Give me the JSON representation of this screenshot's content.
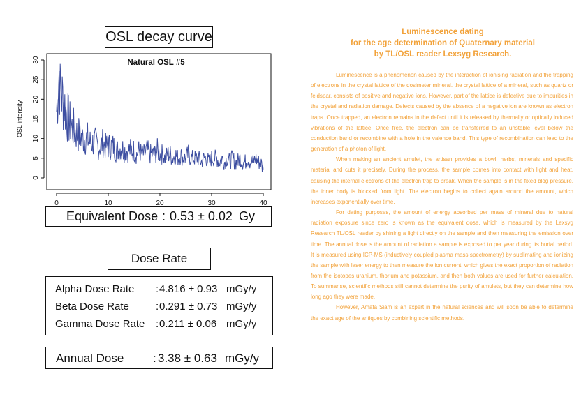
{
  "panel": {
    "title": "OSL decay curve",
    "equivalent_dose": {
      "label": "Equivalent Dose",
      "sep": ":",
      "value": "0.53 ± 0.02",
      "unit": "Gy"
    },
    "dose_rate_title": "Dose Rate",
    "rates": [
      {
        "label": "Alpha Dose Rate",
        "sep": ":",
        "value": "4.816 ± 0.93",
        "unit": "mGy/y"
      },
      {
        "label": "Beta Dose Rate",
        "sep": ":",
        "value": "0.291 ± 0.73",
        "unit": "mGy/y"
      },
      {
        "label": "Gamma Dose Rate",
        "sep": ":",
        "value": "0.211 ± 0.06",
        "unit": "mGy/y"
      }
    ],
    "annual_dose": {
      "label": "Annual Dose",
      "sep": ":",
      "value": "3.38 ± 0.63",
      "unit": "mGy/y"
    }
  },
  "chart_data": {
    "type": "line",
    "title": "Natural OSL #5",
    "xlabel": "",
    "ylabel": "OSL intensity",
    "xlim": [
      0,
      40
    ],
    "ylim": [
      0,
      30
    ],
    "x_ticks": [
      "0",
      "10",
      "20",
      "30",
      "40"
    ],
    "y_ticks": [
      "0",
      "5",
      "10",
      "15",
      "20",
      "25",
      "30"
    ],
    "grid": false,
    "line_color": "#3d4ea1",
    "series": [
      {
        "x": [
          0,
          0.5,
          1,
          1.5,
          2,
          2.5,
          3,
          3.5,
          4,
          4.5,
          5,
          5.5,
          6,
          6.5,
          7,
          7.5,
          8,
          8.5,
          9,
          9.5,
          10,
          10.5,
          11,
          11.5,
          12,
          12.5,
          13,
          13.5,
          14,
          14.5,
          15,
          15.5,
          16,
          16.5,
          17,
          17.5,
          18,
          18.5,
          19,
          19.5,
          20,
          20.5,
          21,
          21.5,
          22,
          22.5,
          23,
          23.5,
          24,
          24.5,
          25,
          25.5,
          26,
          26.5,
          27,
          27.5,
          28,
          28.5,
          29,
          29.5,
          30,
          30.5,
          31,
          31.5,
          32,
          32.5,
          33,
          33.5,
          34,
          34.5,
          35,
          35.5,
          36,
          36.5,
          37,
          37.5,
          38,
          38.5,
          39,
          39.5,
          40
        ],
        "y": [
          17,
          27,
          21,
          19,
          16,
          14,
          13,
          12,
          11,
          11,
          10,
          10,
          10,
          9,
          9,
          9,
          8,
          8,
          9,
          8,
          8,
          8,
          8,
          7,
          7,
          8,
          7,
          7,
          7,
          7,
          7,
          6,
          7,
          6,
          6,
          7,
          6,
          6,
          6,
          7,
          6,
          6,
          5,
          6,
          6,
          5,
          6,
          5,
          6,
          5,
          5,
          6,
          5,
          5,
          5,
          5,
          4,
          5,
          5,
          4,
          5,
          5,
          5,
          4,
          5,
          4,
          5,
          4,
          5,
          4,
          4,
          5,
          4,
          4,
          5,
          4,
          4,
          5,
          4,
          4,
          2
        ]
      }
    ]
  },
  "article": {
    "heading": [
      "Luminescence dating",
      "for the age determination of Quaternary material",
      "by TL/OSL reader Lexsyg Research."
    ],
    "paragraphs": [
      "Luminescence is a phenomenon caused by the interaction of ionising radiation and the trapping of electrons in the crystal lattice of the dosimeter mineral. the crystal lattice of a mineral, such as quartz or feldspar, consists of positive and negative ions. However, part of the lattice is defective due to impurities in the crystal and radiation damage. Defects caused by the absence of a negative ion are known as electron traps. Once trapped, an electron remains in the defect until it is released by thermally or optically induced vibrations of the lattice. Once free, the electron can be transferred to an unstable level below the conduction band or recombine with a hole in the valence band. This type of recombination can lead to the generation of a photon of light.",
      "When making an ancient amulet, the artisan provides a bowl, herbs, minerals and specific material and cuts it precisely. During the process, the sample comes into contact with light and heat, causing the internal electrons of the electron trap to break. When the sample is in the fixed blog pressure, the inner body is blocked from light. The electron begins to collect again around the amount, which increases exponentially over time.",
      "For dating purposes, the amount of energy absorbed per mass of mineral due to natural radiation exposure since zero is known as the equivalent dose, which is measured by the Lexsyg Research TL/OSL reader by shining a light directly on the sample and then measuring the emission over time. The annual dose is the amount of radiation a sample is exposed to per year during its burial period. It is measured using ICP-MS (inductively coupled plasma mass spectrometry) by sublimating and ionizing the sample with laser energy to then measure the ion current, which gives the exact proportion of radiation from the isotopes uranium, thorium and potassium, and then both values are used for further calculation. To summarise, scientific methods still cannot determine the purity of amulets, but they can determine how long ago they were made.",
      "However, Amata Siam is an expert in the natural sciences and will soon be able to determine the exact age of the antiques by combining scientific methods."
    ]
  }
}
